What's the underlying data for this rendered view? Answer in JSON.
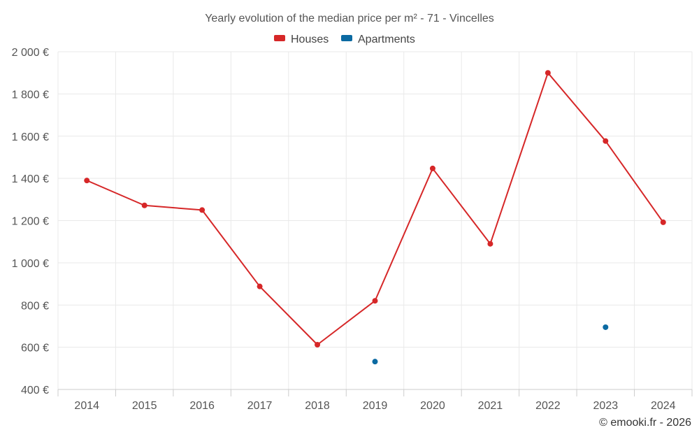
{
  "chart_data": {
    "type": "line",
    "title": "Yearly evolution of the median price per m² - 71 - Vincelles",
    "categories": [
      "2014",
      "2015",
      "2016",
      "2017",
      "2018",
      "2019",
      "2020",
      "2021",
      "2022",
      "2023",
      "2024"
    ],
    "series": [
      {
        "name": "Houses",
        "color": "#d62728",
        "values": [
          1390,
          1272,
          1250,
          888,
          612,
          820,
          1447,
          1090,
          1900,
          1577,
          1192
        ]
      },
      {
        "name": "Apartments",
        "color": "#0b6aa2",
        "values": [
          null,
          null,
          null,
          null,
          null,
          532,
          null,
          null,
          null,
          695,
          null
        ]
      }
    ],
    "y_ticks": [
      "2 000 €",
      "1 800 €",
      "1 600 €",
      "1 400 €",
      "1 200 €",
      "1 000 €",
      "800 €",
      "600 €",
      "400 €"
    ],
    "ylim": [
      400,
      2000
    ],
    "legend_position": "top-center",
    "grid": true,
    "credit": "© emooki.fr - 2026"
  }
}
